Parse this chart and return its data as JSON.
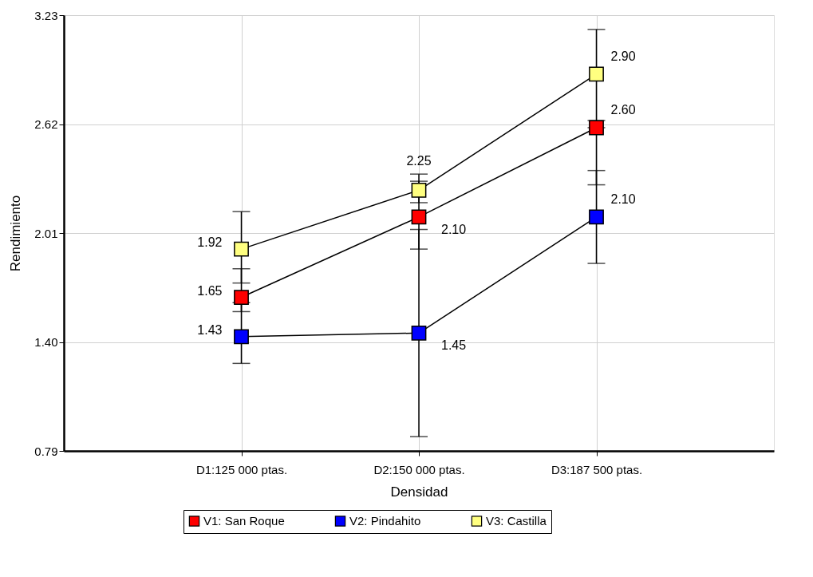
{
  "chart_data": {
    "type": "line",
    "xlabel": "Densidad",
    "ylabel": "Rendimiento",
    "categories": [
      "D1:125 000 ptas.",
      "D2:150 000 ptas.",
      "D3:187 500 ptas."
    ],
    "ylim": [
      0.79,
      3.23
    ],
    "yticks": [
      0.79,
      {
        "value": 1.4,
        "label": "1.40"
      },
      2.01,
      2.62,
      3.23
    ],
    "grid": true,
    "legend": "bottom",
    "marker": "square",
    "line_style": "solid",
    "series": [
      {
        "name": "V1: San Roque",
        "color": "#ff0000",
        "values": [
          1.65,
          2.1,
          2.6
        ],
        "value_labels": [
          "1.65",
          "2.10",
          "2.60"
        ],
        "errors": [
          [
            1.57,
            1.81
          ],
          [
            1.92,
            2.3
          ],
          [
            2.28,
            2.6
          ]
        ]
      },
      {
        "name": "V2: Pindahito",
        "color": "#0000ff",
        "values": [
          1.43,
          1.45,
          2.1
        ],
        "value_labels": [
          "1.43",
          "1.45",
          "2.10"
        ],
        "errors": [
          [
            1.28,
            1.62
          ],
          [
            0.87,
            2.03
          ],
          [
            1.84,
            2.36
          ]
        ]
      },
      {
        "name": "V3: Castilla",
        "color": "#ffff80",
        "values": [
          1.92,
          2.25,
          2.9
        ],
        "value_labels": [
          "1.92",
          "2.25",
          "2.90"
        ],
        "errors": [
          [
            1.73,
            2.13
          ],
          [
            2.18,
            2.34
          ],
          [
            2.64,
            3.15
          ]
        ]
      }
    ]
  }
}
